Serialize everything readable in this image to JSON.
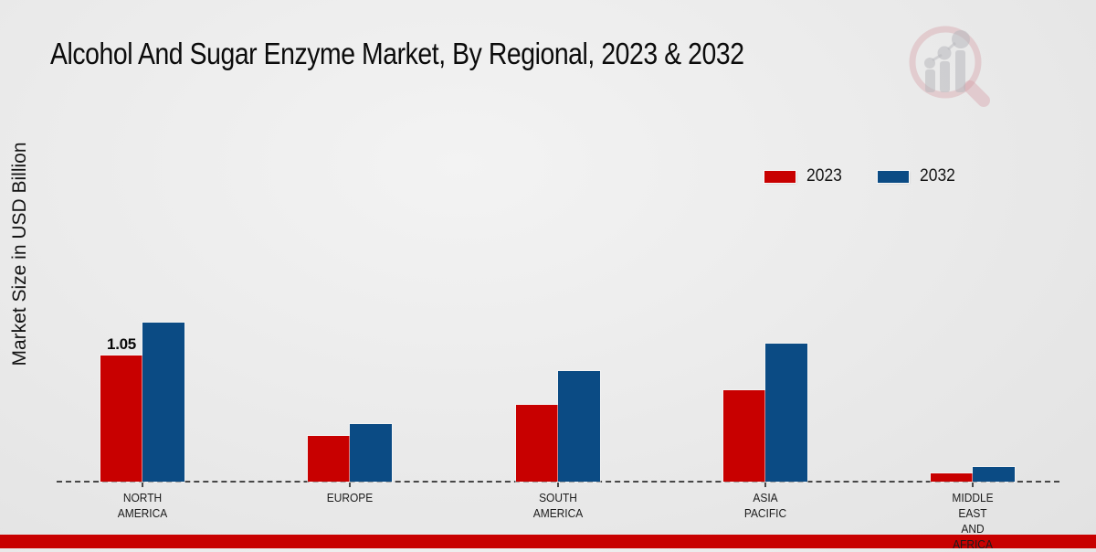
{
  "title": "Alcohol And Sugar Enzyme Market, By Regional, 2023 & 2032",
  "ylabel": "Market Size in USD Billion",
  "legend": [
    {
      "label": "2023",
      "color": "#c80000"
    },
    {
      "label": "2032",
      "color": "#0b4b84"
    }
  ],
  "colors": {
    "series_2023": "#c80000",
    "series_2032": "#0b4b84",
    "footer_band": "#c80000",
    "background": "#ebebeb",
    "baseline_dash": "#474747"
  },
  "chart_data": {
    "type": "bar",
    "categories": [
      "NORTH AMERICA",
      "EUROPE",
      "SOUTH AMERICA",
      "ASIA PACIFIC",
      "MIDDLE EAST AND AFRICA"
    ],
    "series": [
      {
        "name": "2023",
        "color": "#c80000",
        "values": [
          1.05,
          0.38,
          0.64,
          0.76,
          0.07
        ]
      },
      {
        "name": "2032",
        "color": "#0b4b84",
        "values": [
          1.33,
          0.48,
          0.92,
          1.15,
          0.12
        ]
      }
    ],
    "annotations": [
      {
        "series": "2023",
        "category": "NORTH AMERICA",
        "text": "1.05"
      }
    ],
    "title": "Alcohol And Sugar Enzyme Market, By Regional, 2023 & 2032",
    "xlabel": "",
    "ylabel": "Market Size in USD Billion",
    "ylim": [
      0,
      1.45
    ],
    "grid": false,
    "baseline_style": "dashed",
    "legend_position": "top-right",
    "y_axis_ticks_visible": false
  },
  "watermark_icon": "magnifier-growth-chart-logo"
}
